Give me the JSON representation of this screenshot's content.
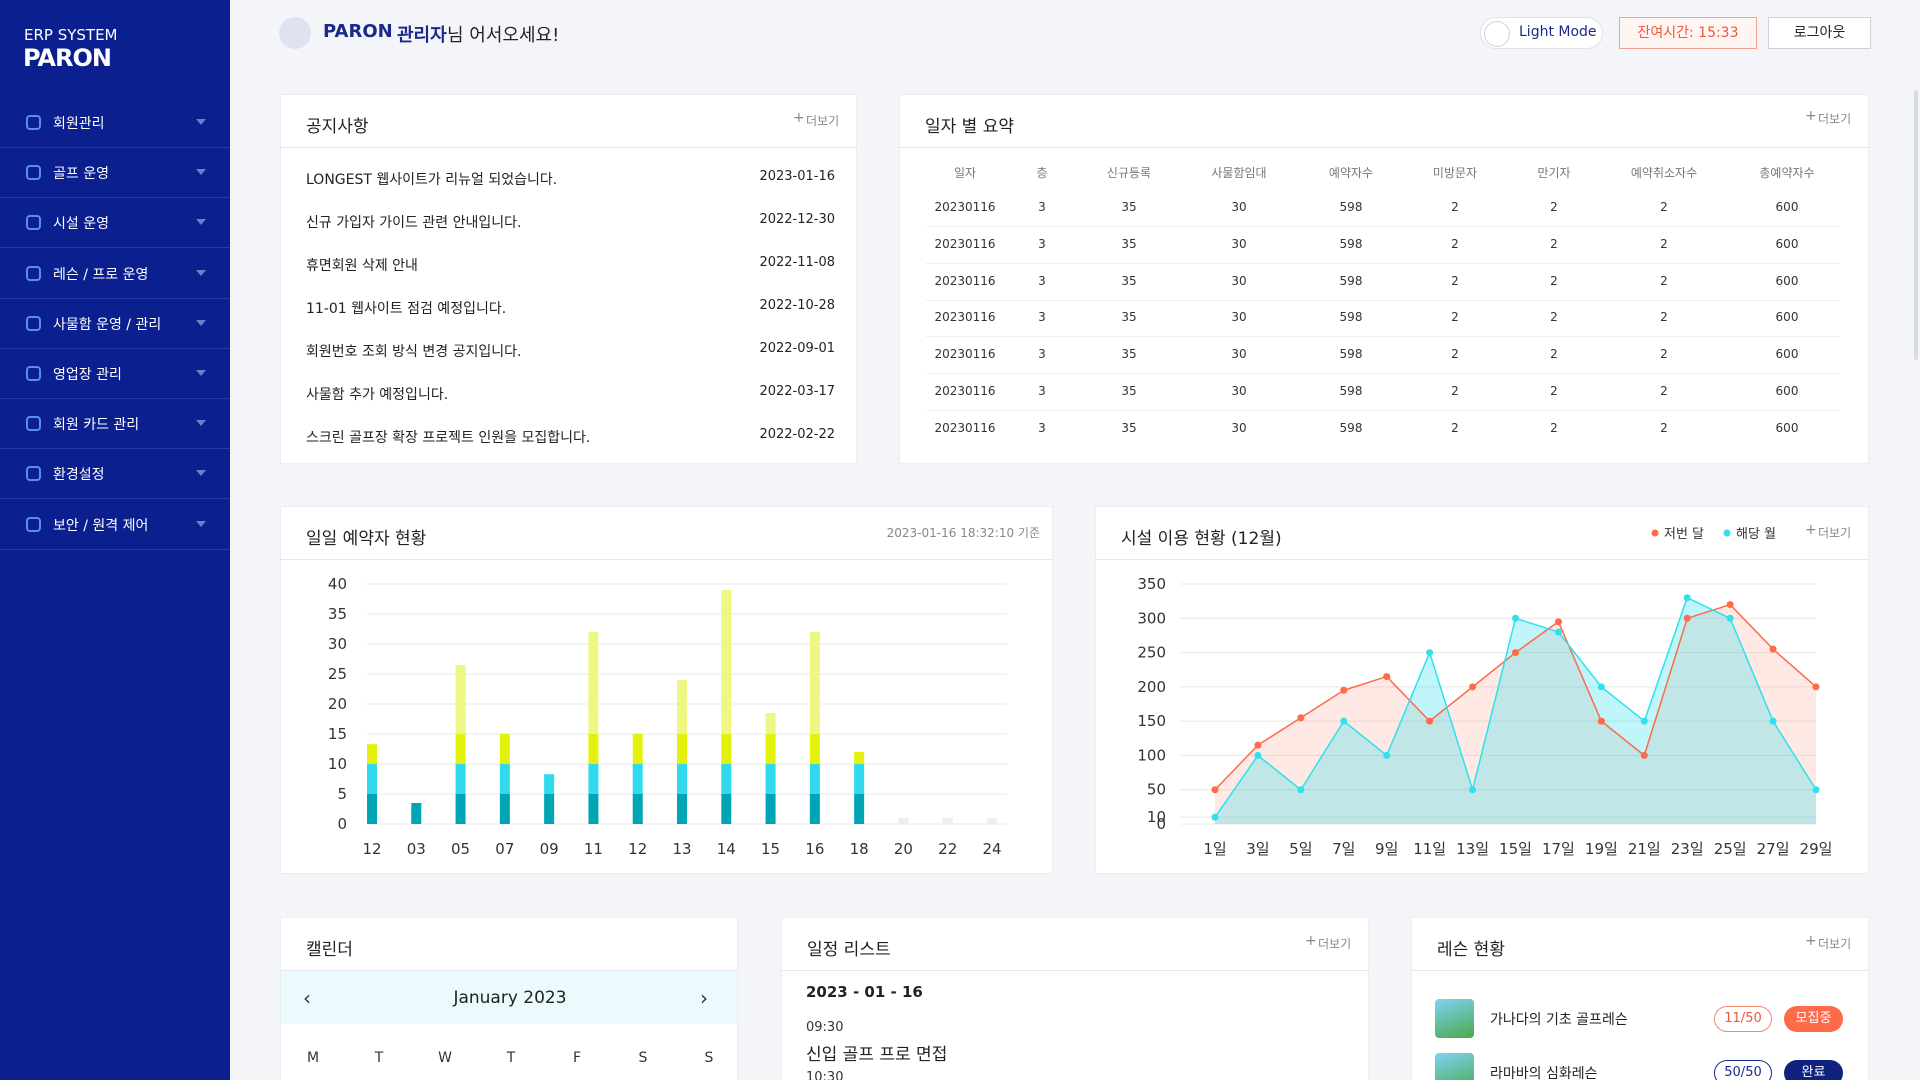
{
  "sidebar": {
    "system": "ERP SYSTEM",
    "brand": "PARON",
    "menu": [
      "회원관리",
      "골프 운영",
      "시설 운영",
      "레슨 / 프로 운영",
      "사물함 운영 / 관리",
      "영업장 관리",
      "회원 카드 관리",
      "환경설정",
      "보안 / 원격 제어"
    ]
  },
  "header": {
    "name": "PARON",
    "role": "관리자",
    "greeting": "님 어서오세요!",
    "mode": "Light Mode",
    "timer": "잔여시간: 15:33",
    "logout": "로그아웃"
  },
  "notice": {
    "title": "공지사항",
    "more": "더보기",
    "items": [
      {
        "text": "LONGEST 웹사이트가 리뉴얼 되었습니다.",
        "date": "2023-01-16"
      },
      {
        "text": "신규 가입자 가이드 관련 안내입니다.",
        "date": "2022-12-30"
      },
      {
        "text": "휴면회원 삭제 안내",
        "date": "2022-11-08"
      },
      {
        "text": "11-01 웹사이트 점검 예정입니다.",
        "date": "2022-10-28"
      },
      {
        "text": "회원번호 조회 방식 변경 공지입니다.",
        "date": "2022-09-01"
      },
      {
        "text": "사물함 추가 예정입니다.",
        "date": "2022-03-17"
      },
      {
        "text": "스크린 골프장 확장 프로젝트 인원을 모집합니다.",
        "date": "2022-02-22"
      }
    ]
  },
  "summary": {
    "title": "일자 별 요약",
    "more": "더보기",
    "columns": [
      "일자",
      "층",
      "신규등록",
      "사물함임대",
      "예약자수",
      "미방문자",
      "만기자",
      "예약취소자수",
      "총예약자수"
    ],
    "rows": [
      [
        20230116,
        3,
        35,
        30,
        598,
        2,
        2,
        2,
        600
      ],
      [
        20230116,
        3,
        35,
        30,
        598,
        2,
        2,
        2,
        600
      ],
      [
        20230116,
        3,
        35,
        30,
        598,
        2,
        2,
        2,
        600
      ],
      [
        20230116,
        3,
        35,
        30,
        598,
        2,
        2,
        2,
        600
      ],
      [
        20230116,
        3,
        35,
        30,
        598,
        2,
        2,
        2,
        600
      ],
      [
        20230116,
        3,
        35,
        30,
        598,
        2,
        2,
        2,
        600
      ],
      [
        20230116,
        3,
        35,
        30,
        598,
        2,
        2,
        2,
        600
      ]
    ]
  },
  "daily": {
    "title": "일일 예약자 현황",
    "timestamp": "2023-01-16 18:32:10 기준"
  },
  "facility": {
    "title": "시설 이용 현황 (12월)",
    "more": "더보기"
  },
  "chart_data": [
    {
      "type": "bar",
      "stacked": true,
      "categories": [
        "12",
        "03",
        "05",
        "07",
        "09",
        "11",
        "12",
        "13",
        "14",
        "15",
        "16",
        "18",
        "20",
        "22",
        "24"
      ],
      "series": [
        {
          "color": "#00a5b5",
          "values": [
            5,
            3.5,
            5,
            5,
            5,
            5,
            5,
            5,
            5,
            5,
            5,
            5,
            0,
            0,
            0
          ]
        },
        {
          "color": "#30d9ee",
          "values": [
            5,
            0,
            5,
            5,
            3.3,
            5,
            5,
            5,
            5,
            5,
            5,
            5,
            0,
            0,
            0
          ]
        },
        {
          "color": "#e2f20c",
          "values": [
            3.3,
            0,
            5,
            5,
            0,
            5,
            5,
            5,
            5,
            5,
            5,
            2,
            0,
            0,
            0
          ]
        },
        {
          "color": "#eef784",
          "values": [
            0,
            0,
            11.5,
            0,
            0,
            17,
            0,
            9,
            24,
            3.5,
            17,
            0,
            0,
            0,
            0
          ]
        },
        {
          "color": "#eeeeee",
          "values": [
            0,
            0,
            0,
            0,
            0,
            0,
            0,
            0,
            0,
            0,
            0,
            0,
            1,
            1,
            1
          ]
        }
      ],
      "ylim": [
        0,
        40
      ],
      "yticks": [
        0,
        5,
        10,
        15,
        20,
        25,
        30,
        35,
        40
      ],
      "grid": true
    },
    {
      "type": "line",
      "categories": [
        "1일",
        "3일",
        "5일",
        "7일",
        "9일",
        "11일",
        "13일",
        "15일",
        "17일",
        "19일",
        "21일",
        "23일",
        "25일",
        "27일",
        "29일"
      ],
      "series": [
        {
          "name": "저번 달",
          "color": "#ff6a48",
          "values": [
            50,
            115,
            155,
            195,
            215,
            150,
            200,
            250,
            295,
            150,
            100,
            300,
            320,
            255,
            200
          ]
        },
        {
          "name": "해당 월",
          "color": "#2fe0ef",
          "values": [
            10,
            100,
            50,
            150,
            100,
            250,
            50,
            300,
            280,
            200,
            150,
            330,
            300,
            150,
            50
          ]
        }
      ],
      "ylim": [
        0,
        350
      ],
      "yticks": [
        0,
        10,
        50,
        100,
        150,
        200,
        250,
        300,
        350
      ],
      "grid": true,
      "legend": "top-right"
    }
  ],
  "calendar": {
    "title": "캘린더",
    "month": "January 2023",
    "weekdays": [
      "M",
      "T",
      "W",
      "T",
      "F",
      "S",
      "S"
    ]
  },
  "schedule": {
    "title": "일정 리스트",
    "more": "더보기",
    "date": "2023 - 01 - 16",
    "items": [
      {
        "time": "09:30",
        "event": "신입 골프 프로 면접"
      },
      {
        "time": "10:30"
      }
    ]
  },
  "lesson": {
    "title": "레슨 현황",
    "more": "더보기",
    "items": [
      {
        "name": "가나다의 기초 골프레슨",
        "count": "11/50",
        "status": "모집중"
      },
      {
        "name": "라마바의 심화레슨",
        "count": "50/50",
        "status": "완료"
      }
    ]
  }
}
